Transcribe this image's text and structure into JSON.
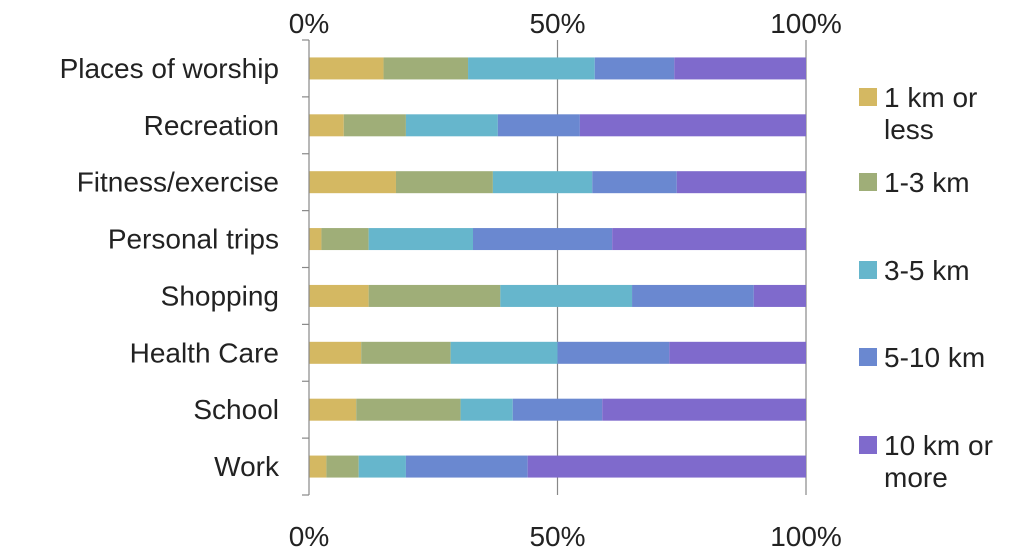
{
  "chart_data": {
    "type": "bar",
    "orientation": "horizontal",
    "stacked": true,
    "normalized": true,
    "categories": [
      "Places of worship",
      "Recreation",
      "Fitness/exercise",
      "Personal trips",
      "Shopping",
      "Health Care",
      "School",
      "Work"
    ],
    "series": [
      {
        "name": "1 km or less",
        "color": "#d4b862",
        "values": [
          15,
          7,
          17.5,
          2.5,
          12,
          10.5,
          9.5,
          3.5
        ]
      },
      {
        "name": "1-3 km",
        "color": "#9fae78",
        "values": [
          17,
          12.5,
          19.5,
          9.5,
          26.5,
          18,
          21,
          6.5
        ]
      },
      {
        "name": "3-5 km",
        "color": "#66b6cc",
        "values": [
          25.5,
          18.5,
          20,
          21,
          26.5,
          21.5,
          10.5,
          9.5
        ]
      },
      {
        "name": "5-10 km",
        "color": "#6a88d0",
        "values": [
          16,
          16.5,
          17,
          28,
          24.5,
          22.5,
          18,
          24.5
        ]
      },
      {
        "name": "10 km or more",
        "color": "#7f6acc",
        "values": [
          26.5,
          45.5,
          26,
          39,
          10.5,
          27.5,
          41,
          56
        ]
      }
    ],
    "xlim": [
      0,
      100
    ],
    "xticks": [
      "0%",
      "50%",
      "100%"
    ],
    "grid": "vertical at 50% and 100%",
    "legend_position": "right"
  }
}
